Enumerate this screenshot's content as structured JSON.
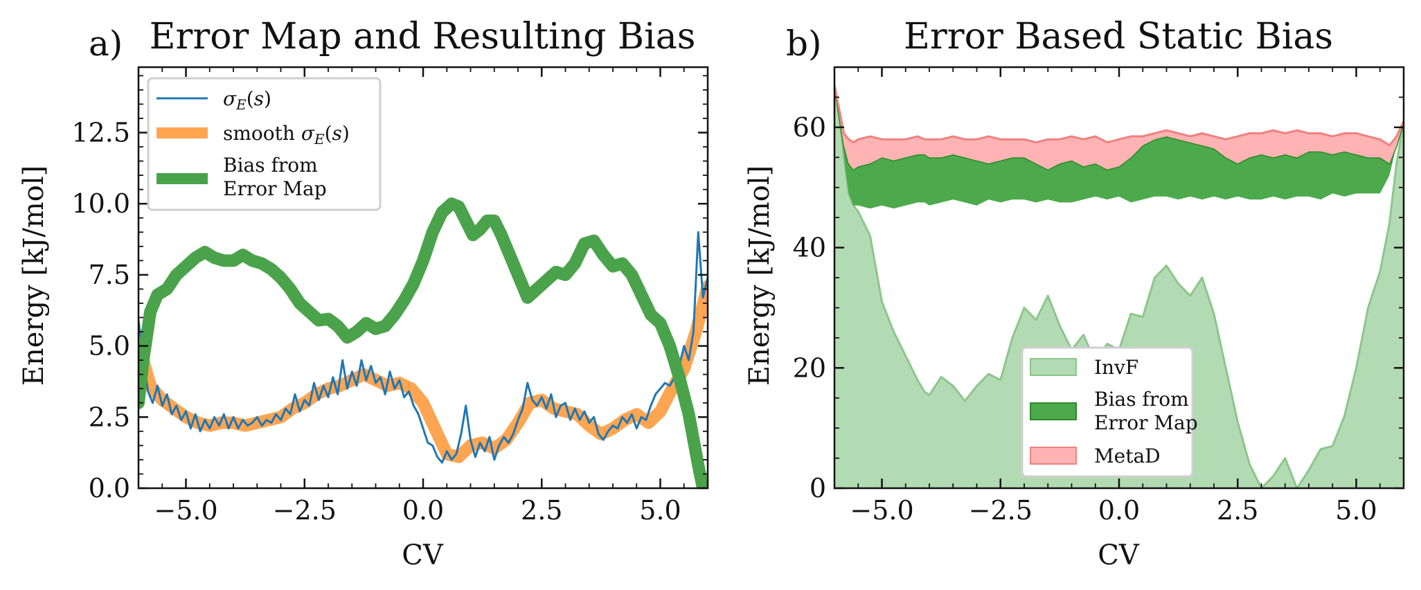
{
  "chart_data": [
    {
      "panel_letter": "a)",
      "type": "line",
      "title": "Error Map and Resulting Bias",
      "xlabel": "CV",
      "ylabel": "Energy [kJ/mol]",
      "xlim": [
        -6,
        6
      ],
      "ylim": [
        0,
        14.8
      ],
      "xticks": [
        -5,
        -2.5,
        0,
        2.5,
        5
      ],
      "xtick_labels": [
        "−5.0",
        "−2.5",
        "0.0",
        "2.5",
        "5.0"
      ],
      "yticks": [
        0,
        2.5,
        5,
        7.5,
        10,
        12.5
      ],
      "ytick_labels": [
        "0.0",
        "2.5",
        "5.0",
        "7.5",
        "10.0",
        "12.5"
      ],
      "legend_position": "top-left",
      "legend": [
        {
          "label": "σE(s)",
          "color": "#1f77b4"
        },
        {
          "label": "smooth σE(s)",
          "color": "#ff7f0e"
        },
        {
          "label": "Bias from",
          "label2": "Error Map",
          "color": "#2ca02c"
        }
      ],
      "series": [
        {
          "name": "smooth σE(s)",
          "color": "#ff7f0e",
          "x": [
            -6.0,
            -5.75,
            -5.5,
            -5.25,
            -5.0,
            -4.75,
            -4.5,
            -4.25,
            -4.0,
            -3.75,
            -3.5,
            -3.25,
            -3.0,
            -2.75,
            -2.5,
            -2.25,
            -2.0,
            -1.75,
            -1.5,
            -1.25,
            -1.0,
            -0.75,
            -0.5,
            -0.25,
            0.0,
            0.25,
            0.5,
            0.75,
            1.0,
            1.25,
            1.5,
            1.75,
            2.0,
            2.25,
            2.5,
            2.75,
            3.0,
            3.25,
            3.5,
            3.75,
            4.0,
            4.25,
            4.5,
            4.75,
            5.0,
            5.25,
            5.5,
            5.75,
            6.0
          ],
          "y": [
            5.1,
            3.6,
            3.1,
            2.8,
            2.5,
            2.3,
            2.2,
            2.3,
            2.3,
            2.2,
            2.3,
            2.4,
            2.5,
            2.8,
            3.0,
            3.3,
            3.5,
            3.6,
            3.8,
            4.0,
            3.8,
            3.6,
            3.7,
            3.5,
            3.0,
            2.1,
            1.2,
            1.1,
            1.5,
            1.6,
            1.4,
            1.7,
            2.3,
            3.0,
            3.1,
            2.8,
            2.7,
            2.6,
            2.2,
            1.9,
            2.1,
            2.4,
            2.6,
            2.3,
            2.7,
            3.5,
            4.2,
            5.5,
            7.1
          ]
        },
        {
          "name": "σE(s)",
          "color": "#1f77b4",
          "x": [
            -6.0,
            -5.9,
            -5.8,
            -5.7,
            -5.6,
            -5.5,
            -5.4,
            -5.3,
            -5.2,
            -5.1,
            -5.0,
            -4.9,
            -4.8,
            -4.7,
            -4.6,
            -4.5,
            -4.4,
            -4.3,
            -4.2,
            -4.1,
            -4.0,
            -3.9,
            -3.8,
            -3.7,
            -3.6,
            -3.5,
            -3.4,
            -3.3,
            -3.2,
            -3.1,
            -3.0,
            -2.9,
            -2.8,
            -2.7,
            -2.6,
            -2.5,
            -2.4,
            -2.3,
            -2.2,
            -2.1,
            -2.0,
            -1.9,
            -1.8,
            -1.7,
            -1.6,
            -1.5,
            -1.4,
            -1.3,
            -1.2,
            -1.1,
            -1.0,
            -0.9,
            -0.8,
            -0.7,
            -0.6,
            -0.5,
            -0.4,
            -0.3,
            -0.2,
            -0.1,
            0.0,
            0.1,
            0.2,
            0.3,
            0.4,
            0.5,
            0.6,
            0.7,
            0.8,
            0.9,
            1.0,
            1.1,
            1.2,
            1.3,
            1.4,
            1.5,
            1.6,
            1.7,
            1.8,
            1.9,
            2.0,
            2.1,
            2.2,
            2.3,
            2.4,
            2.5,
            2.6,
            2.7,
            2.8,
            2.9,
            3.0,
            3.1,
            3.2,
            3.3,
            3.4,
            3.5,
            3.6,
            3.7,
            3.8,
            3.9,
            4.0,
            4.1,
            4.2,
            4.3,
            4.4,
            4.5,
            4.6,
            4.7,
            4.8,
            4.9,
            5.0,
            5.1,
            5.2,
            5.3,
            5.4,
            5.5,
            5.6,
            5.7,
            5.8,
            5.9,
            6.0
          ],
          "y": [
            5.9,
            4.6,
            3.4,
            3.0,
            3.6,
            2.9,
            3.3,
            2.6,
            2.9,
            2.4,
            2.7,
            2.1,
            2.6,
            2.0,
            2.4,
            2.1,
            2.5,
            2.2,
            2.6,
            2.1,
            2.5,
            2.1,
            2.4,
            2.2,
            2.3,
            2.5,
            2.2,
            2.4,
            2.3,
            2.6,
            2.4,
            2.8,
            2.6,
            3.3,
            2.7,
            3.1,
            2.9,
            3.7,
            3.1,
            3.6,
            3.2,
            3.9,
            3.3,
            4.5,
            3.5,
            4.1,
            3.6,
            4.5,
            3.8,
            4.3,
            3.7,
            3.9,
            3.3,
            4.1,
            3.5,
            3.8,
            3.2,
            3.4,
            2.9,
            2.6,
            2.1,
            1.6,
            1.5,
            1.1,
            0.9,
            1.3,
            1.0,
            1.2,
            1.9,
            2.9,
            1.7,
            1.1,
            1.6,
            1.3,
            1.8,
            1.0,
            1.5,
            1.8,
            1.6,
            1.9,
            2.4,
            2.8,
            3.7,
            3.1,
            2.9,
            3.2,
            2.8,
            3.3,
            2.5,
            2.9,
            3.0,
            2.4,
            2.8,
            2.4,
            2.7,
            2.3,
            2.5,
            1.9,
            1.7,
            2.0,
            2.2,
            2.1,
            2.5,
            2.3,
            2.6,
            2.1,
            2.5,
            2.4,
            2.9,
            3.3,
            3.5,
            3.7,
            3.6,
            3.9,
            4.3,
            5.0,
            4.5,
            5.5,
            9.0,
            6.7,
            7.4
          ]
        },
        {
          "name": "Bias from Error Map",
          "color": "#2ca02c",
          "x": [
            -6.0,
            -5.9,
            -5.75,
            -5.6,
            -5.4,
            -5.2,
            -5.0,
            -4.8,
            -4.6,
            -4.4,
            -4.2,
            -4.0,
            -3.8,
            -3.6,
            -3.4,
            -3.2,
            -3.0,
            -2.8,
            -2.6,
            -2.4,
            -2.2,
            -2.0,
            -1.8,
            -1.6,
            -1.4,
            -1.2,
            -1.0,
            -0.8,
            -0.6,
            -0.4,
            -0.2,
            0.0,
            0.2,
            0.4,
            0.6,
            0.75,
            0.9,
            1.05,
            1.2,
            1.35,
            1.5,
            1.65,
            1.8,
            2.0,
            2.2,
            2.4,
            2.6,
            2.8,
            3.0,
            3.2,
            3.4,
            3.6,
            3.8,
            4.0,
            4.2,
            4.4,
            4.6,
            4.8,
            5.0,
            5.2,
            5.4,
            5.6,
            5.8,
            5.9,
            6.0
          ],
          "y": [
            3.0,
            4.5,
            6.2,
            6.8,
            7.0,
            7.5,
            7.8,
            8.1,
            8.3,
            8.1,
            8.0,
            8.0,
            8.2,
            8.0,
            7.9,
            7.7,
            7.4,
            7.0,
            6.5,
            6.2,
            5.9,
            5.95,
            5.7,
            5.3,
            5.5,
            5.8,
            5.6,
            5.7,
            6.1,
            6.6,
            7.2,
            8.0,
            9.0,
            9.7,
            10.0,
            9.9,
            9.4,
            8.9,
            9.1,
            9.4,
            9.4,
            8.9,
            8.3,
            7.5,
            6.7,
            7.0,
            7.3,
            7.6,
            7.5,
            7.9,
            8.6,
            8.7,
            8.2,
            7.8,
            7.9,
            7.5,
            6.8,
            6.1,
            5.8,
            5.0,
            3.9,
            2.6,
            0.8,
            0.0,
            -0.5
          ]
        }
      ]
    },
    {
      "panel_letter": "b)",
      "type": "area",
      "title": "Error Based Static Bias",
      "xlabel": "CV",
      "ylabel": "Energy [kJ/mol]",
      "xlim": [
        -6,
        6
      ],
      "ylim": [
        0,
        70
      ],
      "xticks": [
        -5,
        -2.5,
        0,
        2.5,
        5
      ],
      "xtick_labels": [
        "−5.0",
        "−2.5",
        "0.0",
        "2.5",
        "5.0"
      ],
      "yticks": [
        0,
        20,
        40,
        60
      ],
      "ytick_labels": [
        "0",
        "20",
        "40",
        "60"
      ],
      "legend_position": "bottom-center",
      "legend": [
        {
          "label": "InvF",
          "fill": "#b3dbb3",
          "stroke": "#8cc68c"
        },
        {
          "label": "Bias from",
          "label2": "Error Map",
          "fill": "#4caa4c",
          "stroke": "#2a8a2a"
        },
        {
          "label": "MetaD",
          "fill": "#ffb3b3",
          "stroke": "#f08080"
        }
      ],
      "x": [
        -6.0,
        -5.9,
        -5.8,
        -5.7,
        -5.6,
        -5.5,
        -5.25,
        -5.0,
        -4.75,
        -4.5,
        -4.25,
        -4.1,
        -4.0,
        -3.75,
        -3.5,
        -3.25,
        -3.0,
        -2.75,
        -2.5,
        -2.25,
        -2.0,
        -1.75,
        -1.5,
        -1.25,
        -1.0,
        -0.75,
        -0.5,
        -0.25,
        0.0,
        0.25,
        0.5,
        0.75,
        1.0,
        1.25,
        1.5,
        1.75,
        2.0,
        2.25,
        2.5,
        2.75,
        3.0,
        3.25,
        3.5,
        3.75,
        4.0,
        4.25,
        4.5,
        4.75,
        5.0,
        5.25,
        5.5,
        5.7,
        5.85,
        6.0
      ],
      "series": [
        {
          "name": "InvF",
          "fill": "#b3dbb3",
          "stroke": "#8cc68c",
          "base": [
            0,
            0,
            0,
            0,
            0,
            0,
            0,
            0,
            0,
            0,
            0,
            0,
            0,
            0,
            0,
            0,
            0,
            0,
            0,
            0,
            0,
            0,
            0,
            0,
            0,
            0,
            0,
            0,
            0,
            0,
            0,
            0,
            0,
            0,
            0,
            0,
            0,
            0,
            0,
            0,
            0,
            0,
            0,
            0,
            0,
            0,
            0,
            0,
            0,
            0,
            0,
            0,
            0,
            0
          ],
          "top": [
            67,
            62,
            55,
            49,
            47,
            46,
            42,
            31,
            26,
            22,
            18,
            16,
            15.5,
            18.5,
            17,
            14.5,
            17,
            19,
            18,
            25,
            30,
            28,
            32,
            27,
            23,
            25.5,
            21,
            24,
            23,
            29,
            28.5,
            35,
            37,
            34,
            32,
            35,
            29,
            20,
            11,
            4,
            0,
            2,
            5,
            0,
            3,
            6.5,
            7,
            12,
            20,
            30,
            36,
            44,
            54,
            61
          ]
        },
        {
          "name": "Bias from Error Map",
          "fill": "#4caa4c",
          "stroke": "#2a8a2a",
          "base": [
            67,
            62,
            55,
            49,
            47,
            47,
            46.5,
            47,
            46.5,
            47,
            47.5,
            47.5,
            47,
            47.5,
            48,
            47.5,
            47,
            48,
            47.5,
            48,
            48,
            47.5,
            48,
            47.5,
            47.5,
            48,
            48.5,
            48,
            48.5,
            47.5,
            48,
            48.5,
            48.5,
            48,
            48.5,
            48,
            48.5,
            48,
            48.5,
            48,
            48,
            48.5,
            48,
            48.5,
            48.5,
            48,
            49,
            48.5,
            49,
            49,
            49,
            52,
            57,
            61
          ],
          "top": [
            67,
            62,
            57,
            54,
            53,
            53.5,
            54,
            55,
            54.5,
            55,
            55.5,
            55.5,
            55,
            55,
            55.5,
            55,
            54.5,
            54,
            54.5,
            55,
            55,
            54,
            53,
            54,
            54.5,
            53.5,
            54,
            53,
            53.5,
            55,
            57,
            58,
            58.5,
            58,
            57.5,
            57,
            56.5,
            55,
            54,
            55,
            55.5,
            55,
            55.5,
            55,
            56,
            56,
            55.5,
            56,
            55.5,
            55,
            55,
            54,
            57,
            61
          ]
        },
        {
          "name": "MetaD",
          "fill": "#ffb3b3",
          "stroke": "#f08080",
          "base": [
            67,
            62,
            57,
            54,
            53,
            53.5,
            54,
            55,
            54.5,
            55,
            55.5,
            55.5,
            55,
            55,
            55.5,
            55,
            54.5,
            54,
            54.5,
            55,
            55,
            54,
            53,
            54,
            54.5,
            53.5,
            54,
            53,
            53.5,
            55,
            57,
            58,
            58.5,
            58,
            57.5,
            57,
            56.5,
            55,
            54,
            55,
            55.5,
            55,
            55.5,
            55,
            56,
            56,
            55.5,
            56,
            55.5,
            55,
            55,
            54,
            57,
            61
          ],
          "top": [
            67,
            63,
            59,
            58,
            57.5,
            58,
            58.5,
            58,
            58,
            58,
            58.5,
            58,
            58,
            58,
            58.5,
            58,
            58,
            58.5,
            58,
            58,
            58,
            57.5,
            58,
            58,
            58.5,
            58,
            58.5,
            57.5,
            58,
            58.5,
            58.5,
            59,
            59.5,
            59,
            58.5,
            59,
            58.5,
            58,
            58.5,
            59,
            59,
            59.5,
            59,
            59.5,
            59,
            59,
            58.5,
            59,
            59,
            58.5,
            58,
            57,
            58.5,
            61
          ]
        }
      ]
    }
  ]
}
